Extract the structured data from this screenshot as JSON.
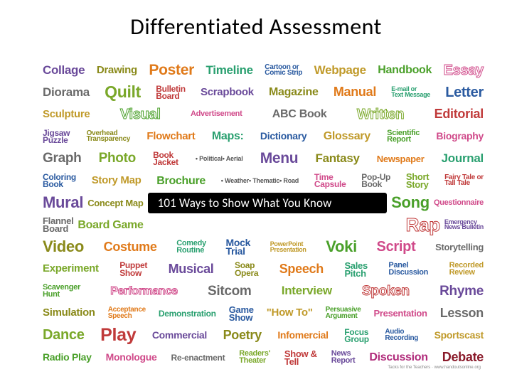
{
  "title": "Differentiated Assessment",
  "banner_text": "101 Ways to Show What You Know",
  "footer": "Tacks for the Teachers · www.handoutsonline.org",
  "palette": {
    "purple": "#6a4a9a",
    "olive": "#8a8a1a",
    "orange": "#e07a1a",
    "teal": "#2aa070",
    "blue": "#2a5aa0",
    "gold": "#c09a2a",
    "green": "#4aa02a",
    "pink": "#d04a8a",
    "grey": "#6a6a6a",
    "lime": "#7aa82a",
    "red": "#c03a3a",
    "magenta": "#b02a7a",
    "crimson": "#8a1a2a",
    "black": "#222222"
  },
  "rows": [
    [
      {
        "t": [
          "Collage"
        ],
        "c": "purple",
        "s": 17
      },
      {
        "t": [
          "Drawing"
        ],
        "c": "olive",
        "s": 15
      },
      {
        "t": [
          "Poster"
        ],
        "c": "orange",
        "s": 21
      },
      {
        "t": [
          "Timeline"
        ],
        "c": "teal",
        "s": 17
      },
      {
        "t": [
          "Cartoon or",
          "Comic Strip"
        ],
        "c": "blue",
        "s": 10
      },
      {
        "t": [
          "Webpage"
        ],
        "c": "gold",
        "s": 17
      },
      {
        "t": [
          "Handbook"
        ],
        "c": "green",
        "s": 16
      },
      {
        "t": [
          "Essay"
        ],
        "c": "pink",
        "s": 20,
        "outline": true
      }
    ],
    [
      {
        "t": [
          "Diorama"
        ],
        "c": "grey",
        "s": 17
      },
      {
        "t": [
          "Quilt"
        ],
        "c": "lime",
        "s": 23
      },
      {
        "t": [
          "Bulletin",
          "Board"
        ],
        "c": "red",
        "s": 12
      },
      {
        "t": [
          "Scrapbook"
        ],
        "c": "purple",
        "s": 15
      },
      {
        "t": [
          "Magazine"
        ],
        "c": "olive",
        "s": 16
      },
      {
        "t": [
          "Manual"
        ],
        "c": "orange",
        "s": 18
      },
      {
        "t": [
          "E-mail or",
          "Text Message"
        ],
        "c": "teal",
        "s": 9
      },
      {
        "t": [
          "Letter"
        ],
        "c": "blue",
        "s": 20
      }
    ],
    [
      {
        "t": [
          "Sculpture"
        ],
        "c": "gold",
        "s": 15
      },
      {
        "t": [
          "Visual"
        ],
        "c": "green",
        "s": 20,
        "outline": true
      },
      {
        "t": [
          "Advertisement"
        ],
        "c": "pink",
        "s": 11
      },
      {
        "t": [
          "ABC Book"
        ],
        "c": "grey",
        "s": 16
      },
      {
        "t": [
          "Written"
        ],
        "c": "lime",
        "s": 20,
        "outline": true
      },
      {
        "t": [
          "Editorial"
        ],
        "c": "red",
        "s": 18
      }
    ],
    [
      {
        "t": [
          "Jigsaw",
          "Puzzle"
        ],
        "c": "purple",
        "s": 12
      },
      {
        "t": [
          "Overhead",
          "Transparency"
        ],
        "c": "olive",
        "s": 10
      },
      {
        "t": [
          "Flowchart"
        ],
        "c": "orange",
        "s": 15
      },
      {
        "t": [
          "Maps:"
        ],
        "c": "teal",
        "s": 16
      },
      {
        "t": [
          "Dictionary"
        ],
        "c": "blue",
        "s": 14
      },
      {
        "t": [
          "Glossary"
        ],
        "c": "gold",
        "s": 16
      },
      {
        "t": [
          "Scientific",
          "Report"
        ],
        "c": "green",
        "s": 11
      },
      {
        "t": [
          "Biography"
        ],
        "c": "pink",
        "s": 14
      }
    ],
    [
      {
        "t": [
          "Graph"
        ],
        "c": "grey",
        "s": 19
      },
      {
        "t": [
          "Photo"
        ],
        "c": "lime",
        "s": 19
      },
      {
        "t": [
          "Book",
          "Jacket"
        ],
        "c": "red",
        "s": 12
      },
      {
        "t": [
          "• Political",
          "• Aerial"
        ],
        "c": "black",
        "s": 0,
        "bullet": true
      },
      {
        "t": [
          "Menu"
        ],
        "c": "purple",
        "s": 21
      },
      {
        "t": [
          "Fantasy"
        ],
        "c": "olive",
        "s": 17
      },
      {
        "t": [
          "Newspaper"
        ],
        "c": "orange",
        "s": 13
      },
      {
        "t": [
          "Journal"
        ],
        "c": "teal",
        "s": 17
      }
    ],
    [
      {
        "t": [
          "Coloring",
          "Book"
        ],
        "c": "blue",
        "s": 12
      },
      {
        "t": [
          "Story Map"
        ],
        "c": "gold",
        "s": 15
      },
      {
        "t": [
          "Brochure"
        ],
        "c": "green",
        "s": 16
      },
      {
        "t": [
          "• Weather",
          "• Thematic",
          "• Road"
        ],
        "c": "black",
        "s": 0,
        "bullet": true
      },
      {
        "t": [
          "Time",
          "Capsule"
        ],
        "c": "pink",
        "s": 12
      },
      {
        "t": [
          "Pop-Up",
          "Book"
        ],
        "c": "grey",
        "s": 12
      },
      {
        "t": [
          "Short",
          "Story"
        ],
        "c": "lime",
        "s": 13
      },
      {
        "t": [
          "Fairy Tale or",
          "Tall Tale"
        ],
        "c": "red",
        "s": 10
      }
    ],
    [
      {
        "t": [
          "Mural"
        ],
        "c": "purple",
        "s": 22
      },
      {
        "t": [
          "Concept Map"
        ],
        "c": "olive",
        "s": 13
      },
      {
        "banner": true
      },
      {
        "t": [
          "Song"
        ],
        "c": "green",
        "s": 22
      },
      {
        "t": [
          "Questionnaire"
        ],
        "c": "pink",
        "s": 11
      }
    ],
    [
      {
        "t": [
          "Flannel",
          "Board"
        ],
        "c": "grey",
        "s": 13
      },
      {
        "t": [
          "Board Game"
        ],
        "c": "lime",
        "s": 16
      },
      {
        "t": [
          ""
        ],
        "c": "black",
        "s": 12,
        "grow": true
      },
      {
        "t": [
          "Rap"
        ],
        "c": "red",
        "s": 26,
        "outline": true
      },
      {
        "t": [
          "Emergency",
          "News Bulletin"
        ],
        "c": "purple",
        "s": 9
      }
    ],
    [
      {
        "t": [
          "Video"
        ],
        "c": "olive",
        "s": 22
      },
      {
        "t": [
          "Costume"
        ],
        "c": "orange",
        "s": 18
      },
      {
        "t": [
          "Comedy",
          "Routine"
        ],
        "c": "teal",
        "s": 11
      },
      {
        "t": [
          "Mock",
          "Trial"
        ],
        "c": "blue",
        "s": 14
      },
      {
        "t": [
          "PowerPoint",
          "Presentation"
        ],
        "c": "gold",
        "s": 9
      },
      {
        "t": [
          "Voki"
        ],
        "c": "green",
        "s": 22
      },
      {
        "t": [
          "Script"
        ],
        "c": "pink",
        "s": 20
      },
      {
        "t": [
          "Storytelling"
        ],
        "c": "grey",
        "s": 13
      }
    ],
    [
      {
        "t": [
          "Experiment"
        ],
        "c": "lime",
        "s": 15
      },
      {
        "t": [
          "Puppet",
          "Show"
        ],
        "c": "red",
        "s": 12
      },
      {
        "t": [
          "Musical"
        ],
        "c": "purple",
        "s": 18
      },
      {
        "t": [
          "Soap",
          "Opera"
        ],
        "c": "olive",
        "s": 12
      },
      {
        "t": [
          "Speech"
        ],
        "c": "orange",
        "s": 18
      },
      {
        "t": [
          "Sales",
          "Pitch"
        ],
        "c": "teal",
        "s": 13
      },
      {
        "t": [
          "Panel",
          "Discussion"
        ],
        "c": "blue",
        "s": 11
      },
      {
        "t": [
          "Recorded",
          "Review"
        ],
        "c": "gold",
        "s": 11
      }
    ],
    [
      {
        "t": [
          "Scavenger",
          "Hunt"
        ],
        "c": "green",
        "s": 11
      },
      {
        "t": [
          "Performance"
        ],
        "c": "pink",
        "s": 16,
        "outline": true
      },
      {
        "t": [
          "Sitcom"
        ],
        "c": "grey",
        "s": 19
      },
      {
        "t": [
          "Interview"
        ],
        "c": "lime",
        "s": 17
      },
      {
        "t": [
          "Spoken"
        ],
        "c": "red",
        "s": 19,
        "outline": true
      },
      {
        "t": [
          "Rhyme"
        ],
        "c": "purple",
        "s": 19
      }
    ],
    [
      {
        "t": [
          "Simulation"
        ],
        "c": "olive",
        "s": 15
      },
      {
        "t": [
          "Acceptance",
          "Speech"
        ],
        "c": "orange",
        "s": 10
      },
      {
        "t": [
          "Demonstration"
        ],
        "c": "teal",
        "s": 12
      },
      {
        "t": [
          "Game",
          "Show"
        ],
        "c": "blue",
        "s": 13
      },
      {
        "t": [
          "\"How To\""
        ],
        "c": "gold",
        "s": 15
      },
      {
        "t": [
          "Persuasive",
          "Argument"
        ],
        "c": "green",
        "s": 10
      },
      {
        "t": [
          "Presentation"
        ],
        "c": "pink",
        "s": 13
      },
      {
        "t": [
          "Lesson"
        ],
        "c": "grey",
        "s": 18
      }
    ],
    [
      {
        "t": [
          "Dance"
        ],
        "c": "lime",
        "s": 20
      },
      {
        "t": [
          "Play"
        ],
        "c": "red",
        "s": 25
      },
      {
        "t": [
          "Commercial"
        ],
        "c": "purple",
        "s": 14
      },
      {
        "t": [
          "Poetry"
        ],
        "c": "olive",
        "s": 18
      },
      {
        "t": [
          "Infomercial"
        ],
        "c": "orange",
        "s": 14
      },
      {
        "t": [
          "Focus",
          "Group"
        ],
        "c": "teal",
        "s": 12
      },
      {
        "t": [
          "Audio",
          "Recording"
        ],
        "c": "blue",
        "s": 10
      },
      {
        "t": [
          "Sportscast"
        ],
        "c": "gold",
        "s": 14
      }
    ],
    [
      {
        "t": [
          "Radio Play"
        ],
        "c": "green",
        "s": 14
      },
      {
        "t": [
          "Monologue"
        ],
        "c": "pink",
        "s": 14
      },
      {
        "t": [
          "Re-enactment"
        ],
        "c": "grey",
        "s": 12
      },
      {
        "t": [
          "Readers'",
          "Theater"
        ],
        "c": "lime",
        "s": 11
      },
      {
        "t": [
          "Show &",
          "Tell"
        ],
        "c": "red",
        "s": 13
      },
      {
        "t": [
          "News",
          "Report"
        ],
        "c": "purple",
        "s": 11
      },
      {
        "t": [
          "Discussion"
        ],
        "c": "magenta",
        "s": 16
      },
      {
        "t": [
          "Debate"
        ],
        "c": "crimson",
        "s": 18
      }
    ]
  ]
}
